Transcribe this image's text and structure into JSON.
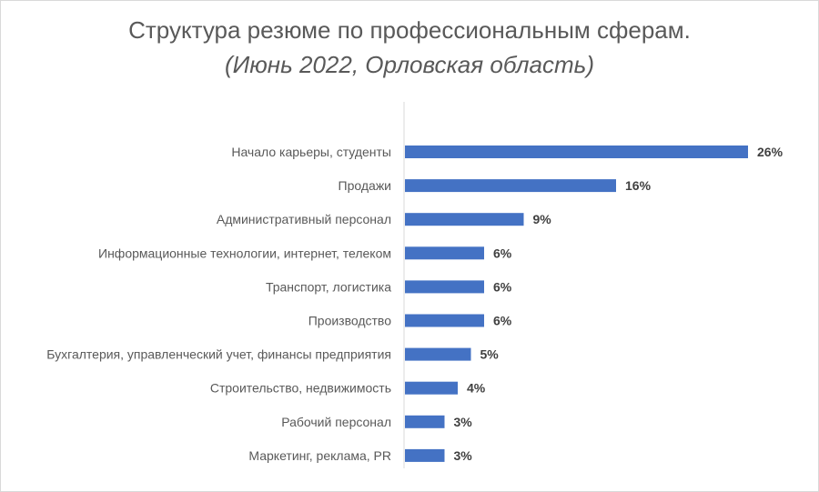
{
  "chart_data": {
    "type": "bar",
    "orientation": "horizontal",
    "title": "Структура резюме по профессиональным сферам.",
    "subtitle": "(Июнь 2022, Орловская область)",
    "categories": [
      "Начало карьеры, студенты",
      "Продажи",
      "Административный персонал",
      "Информационные технологии, интернет, телеком",
      "Транспорт, логистика",
      "Производство",
      "Бухгалтерия, управленческий учет, финансы предприятия",
      "Строительство, недвижимость",
      "Рабочий персонал",
      "Маркетинг, реклама, PR"
    ],
    "values": [
      26,
      16,
      9,
      6,
      6,
      6,
      5,
      4,
      3,
      3
    ],
    "labels": [
      "26%",
      "16%",
      "9%",
      "6%",
      "6%",
      "6%",
      "5%",
      "4%",
      "3%",
      "3%"
    ],
    "unit": "%",
    "bar_color": "#4472c4",
    "grid": false,
    "legend": "none"
  }
}
